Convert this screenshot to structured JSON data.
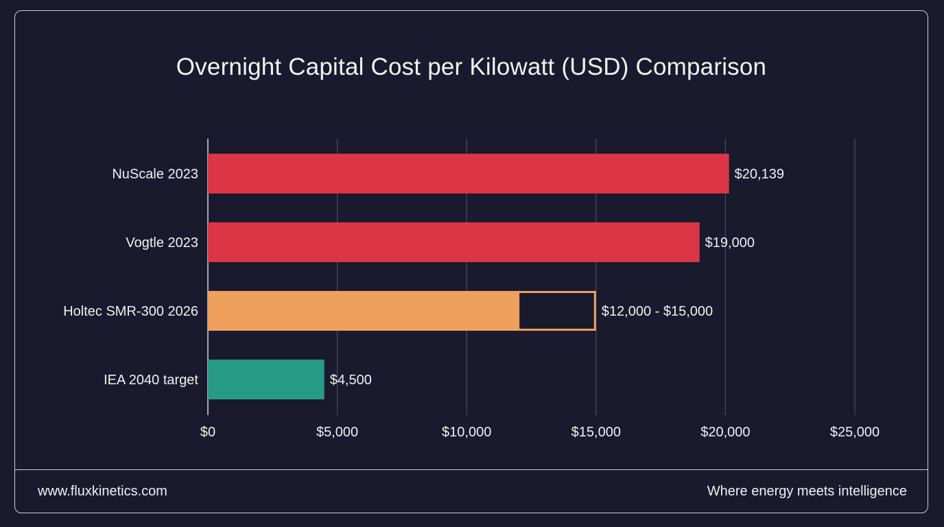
{
  "footer": {
    "website": "www.fluxkinetics.com",
    "tagline": "Where energy meets intelligence"
  },
  "chart_data": {
    "type": "bar",
    "orientation": "horizontal",
    "title": "Overnight Capital Cost per Kilowatt (USD) Comparison",
    "xlabel": "",
    "ylabel": "",
    "xlim": [
      0,
      25000
    ],
    "grid": true,
    "ticks": [
      {
        "value": 0,
        "label": "$0"
      },
      {
        "value": 5000,
        "label": "$5,000"
      },
      {
        "value": 10000,
        "label": "$10,000"
      },
      {
        "value": 15000,
        "label": "$15,000"
      },
      {
        "value": 20000,
        "label": "$20,000"
      },
      {
        "value": 25000,
        "label": "$25,000"
      }
    ],
    "categories": [
      "NuScale 2023",
      "Vogtle 2023",
      "Holtec SMR-300 2026",
      "IEA 2040 target"
    ],
    "bars": [
      {
        "category": "NuScale 2023",
        "value": 20139,
        "label": "$20,139",
        "color": "#dc3545"
      },
      {
        "category": "Vogtle 2023",
        "value": 19000,
        "label": "$19,000",
        "color": "#dc3545"
      },
      {
        "category": "Holtec SMR-300 2026",
        "low": 12000,
        "high": 15000,
        "value": 12000,
        "label": "$12,000 - $15,000",
        "color": "#f0a05d"
      },
      {
        "category": "IEA 2040 target",
        "value": 4500,
        "label": "$4,500",
        "color": "#279a87"
      }
    ]
  }
}
